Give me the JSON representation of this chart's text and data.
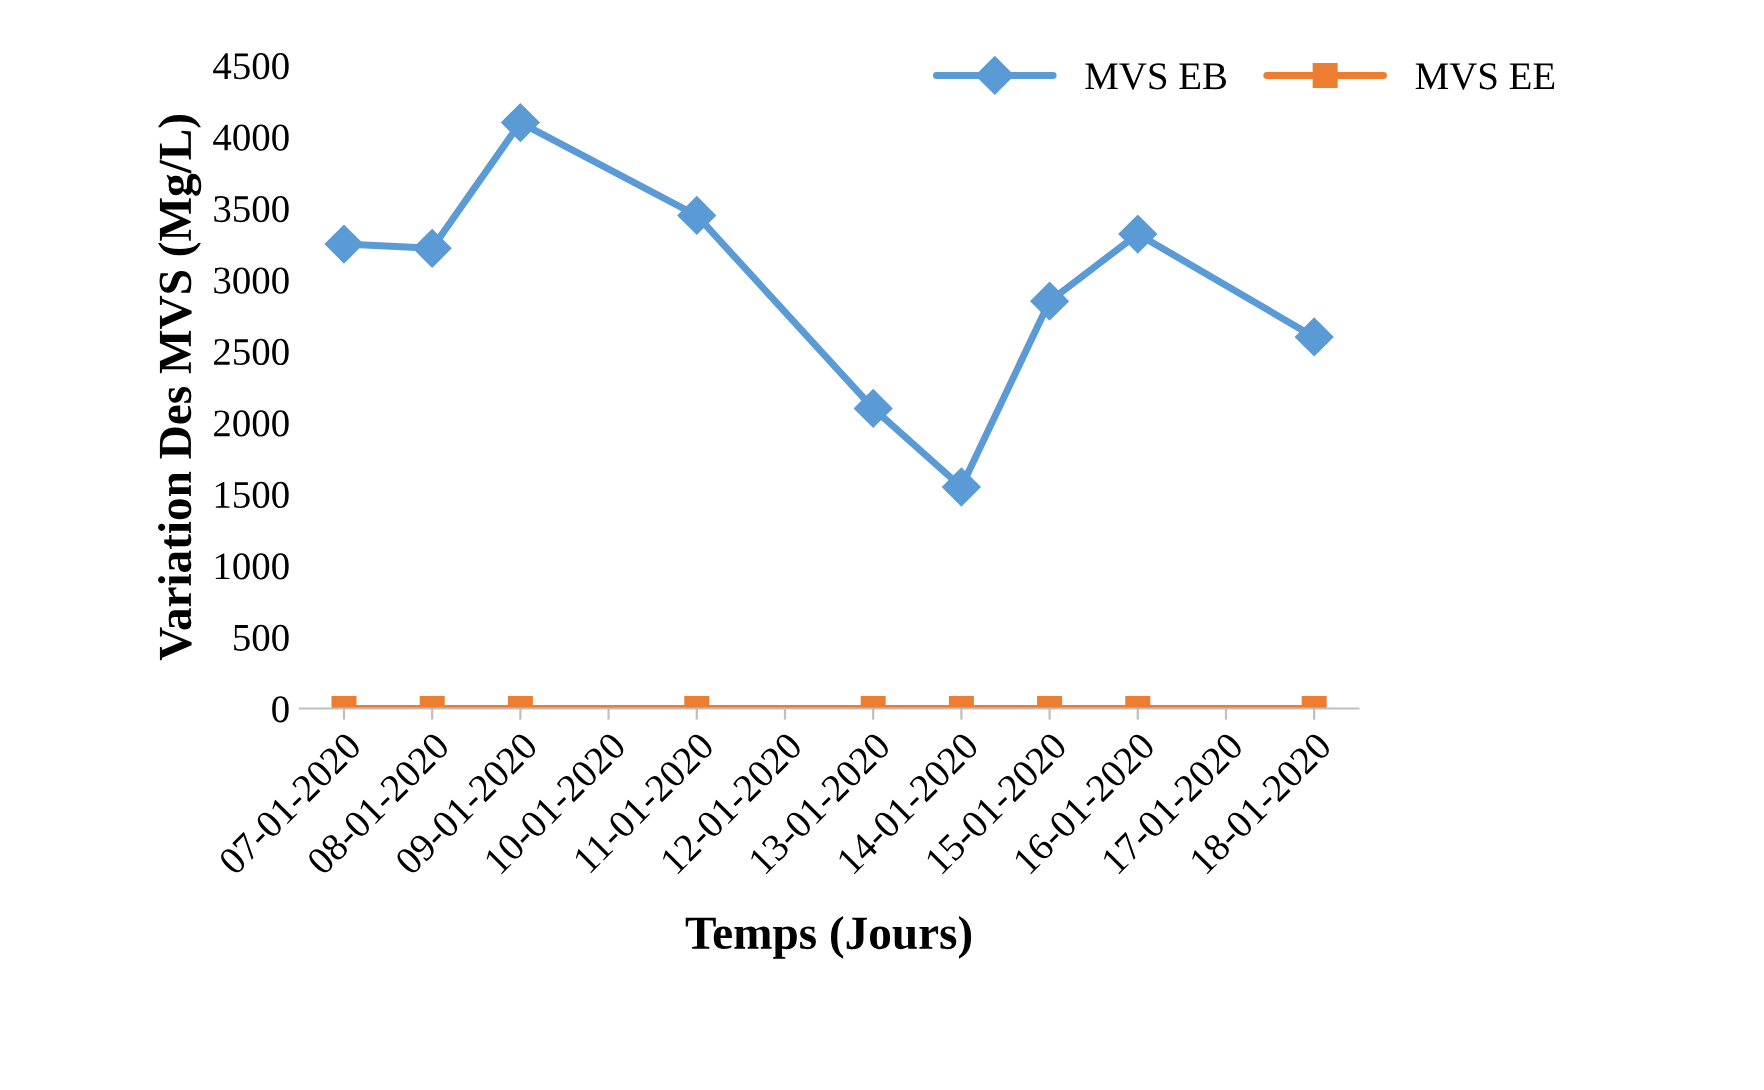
{
  "chart_data": {
    "type": "line",
    "xlabel": "Temps (Jours)",
    "ylabel": "Variation Des MVS (Mg/L)",
    "x": [
      "2020-01-07",
      "2020-01-08",
      "2020-01-09",
      "2020-01-11",
      "2020-01-13",
      "2020-01-14",
      "2020-01-15",
      "2020-01-16",
      "2020-01-18"
    ],
    "series": [
      {
        "name": "MVS EB",
        "color": "#5b9bd5",
        "marker": "diamond",
        "values": [
          3250,
          3220,
          4100,
          3450,
          2100,
          1550,
          2850,
          3320,
          2600
        ]
      },
      {
        "name": "MVS EE",
        "color": "#ed7d31",
        "marker": "square",
        "values": [
          0,
          0,
          0,
          0,
          0,
          0,
          0,
          0,
          0
        ]
      }
    ],
    "xlim": [
      "2020-01-06T12:00",
      "2020-01-18T12:00"
    ],
    "xticks": [
      {
        "value": "2020-01-07",
        "label": "07-01-2020"
      },
      {
        "value": "2020-01-08",
        "label": "08-01-2020"
      },
      {
        "value": "2020-01-09",
        "label": "09-01-2020"
      },
      {
        "value": "2020-01-10",
        "label": "10-01-2020"
      },
      {
        "value": "2020-01-11",
        "label": "11-01-2020"
      },
      {
        "value": "2020-01-12",
        "label": "12-01-2020"
      },
      {
        "value": "2020-01-13",
        "label": "13-01-2020"
      },
      {
        "value": "2020-01-14",
        "label": "14-01-2020"
      },
      {
        "value": "2020-01-15",
        "label": "15-01-2020"
      },
      {
        "value": "2020-01-16",
        "label": "16-01-2020"
      },
      {
        "value": "2020-01-17",
        "label": "17-01-2020"
      },
      {
        "value": "2020-01-18",
        "label": "18-01-2020"
      }
    ],
    "ylim": [
      0,
      4500
    ],
    "yticks": [
      0,
      500,
      1000,
      1500,
      2000,
      2500,
      3000,
      3500,
      4000,
      4500
    ],
    "grid": false,
    "legend": "top right",
    "line_style": "solid"
  }
}
